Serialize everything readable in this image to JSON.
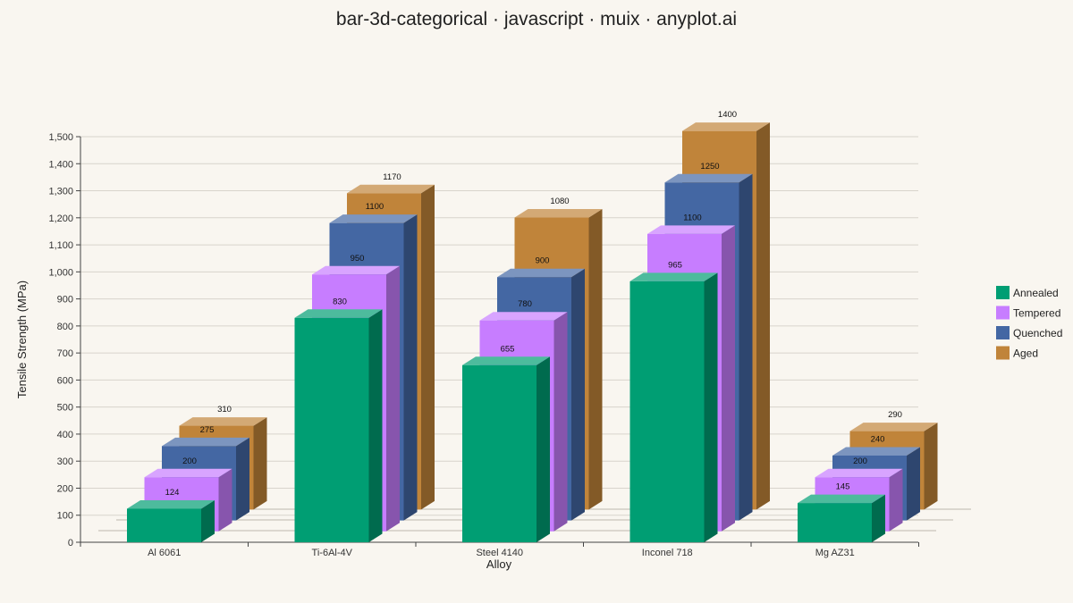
{
  "title": "bar-3d-categorical · javascript · muix · anyplot.ai",
  "chart_data": {
    "type": "bar",
    "variant": "3d-grouped",
    "title": "bar-3d-categorical · javascript · muix · anyplot.ai",
    "xlabel": "Alloy",
    "ylabel": "Tensile Strength (MPa)",
    "categories": [
      "Al 6061",
      "Ti-6Al-4V",
      "Steel 4140",
      "Inconel 718",
      "Mg AZ31"
    ],
    "series": [
      {
        "name": "Annealed",
        "color": "#009e73",
        "values": [
          124,
          830,
          655,
          965,
          145
        ]
      },
      {
        "name": "Tempered",
        "color": "#c77dff",
        "values": [
          200,
          950,
          780,
          1100,
          200
        ]
      },
      {
        "name": "Quenched",
        "color": "#4467a3",
        "values": [
          275,
          1100,
          900,
          1250,
          240
        ]
      },
      {
        "name": "Aged",
        "color": "#c0843a",
        "values": [
          310,
          1170,
          1080,
          1400,
          290
        ]
      }
    ],
    "ylim": [
      0,
      1500
    ],
    "yticks": [
      0,
      100,
      200,
      300,
      400,
      500,
      600,
      700,
      800,
      900,
      1000,
      1100,
      1200,
      1300,
      1400,
      1500
    ],
    "ytick_labels": [
      "0",
      "100",
      "200",
      "300",
      "400",
      "500",
      "600",
      "700",
      "800",
      "900",
      "1,000",
      "1,100",
      "1,200",
      "1,300",
      "1,400",
      "1,500"
    ],
    "grid": true,
    "legend": "right",
    "data_labels": true
  }
}
